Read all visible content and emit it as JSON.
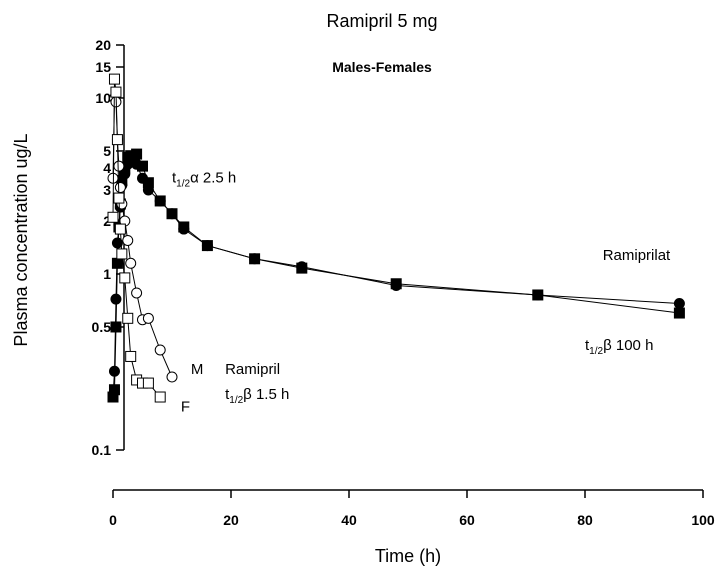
{
  "chart_data": {
    "type": "scatter",
    "title": "Ramipril 5 mg",
    "subtitle": "Males-Females",
    "xlabel": "Time (h)",
    "ylabel": "Plasma concentration ug/L",
    "xlim": [
      0,
      100
    ],
    "ylim": [
      0.1,
      20
    ],
    "yscale": "log",
    "grid": false,
    "x_ticks": [
      0,
      20,
      40,
      60,
      80,
      100
    ],
    "x_tick_labels": [
      "0",
      "20",
      "40",
      "60",
      "80",
      "100"
    ],
    "y_ticks": [
      0.1,
      0.5,
      1,
      2,
      3,
      4,
      5,
      10,
      15,
      20
    ],
    "y_tick_labels": [
      "0.1",
      "0.5",
      "1",
      "2",
      "3",
      "4",
      "5",
      "10",
      "15",
      "20"
    ],
    "series": [
      {
        "label": "Ramiprilat",
        "marker": "filled-circle",
        "color": "#000000",
        "x": [
          0,
          0.25,
          0.5,
          0.75,
          1,
          1.25,
          1.5,
          2,
          2.5,
          3,
          4,
          5,
          6,
          8,
          10,
          12,
          16,
          24,
          32,
          48,
          72,
          96
        ],
        "y": [
          0.2,
          0.28,
          0.72,
          1.5,
          1.9,
          2.4,
          3.2,
          3.7,
          4.2,
          4.4,
          4.2,
          3.5,
          3.0,
          2.6,
          2.2,
          1.8,
          1.45,
          1.22,
          1.1,
          0.86,
          0.76,
          0.68
        ]
      },
      {
        "label": "Ramiprilat",
        "marker": "filled-square",
        "color": "#000000",
        "x": [
          0,
          0.25,
          0.5,
          0.75,
          1,
          1.25,
          1.5,
          2,
          2.5,
          3,
          4,
          5,
          6,
          8,
          10,
          12,
          16,
          24,
          32,
          48,
          72,
          96
        ],
        "y": [
          0.2,
          0.22,
          0.5,
          1.15,
          1.85,
          2.5,
          3.4,
          4.0,
          4.6,
          4.7,
          4.8,
          4.1,
          3.3,
          2.6,
          2.2,
          1.85,
          1.45,
          1.22,
          1.08,
          0.88,
          0.76,
          0.6
        ]
      },
      {
        "label": "M",
        "marker": "open-circle",
        "color": "#000000",
        "x": [
          0,
          0.25,
          0.5,
          0.75,
          1,
          1.25,
          1.5,
          2,
          2.5,
          3,
          4,
          5,
          6,
          8,
          10
        ],
        "y": [
          3.5,
          10.0,
          9.5,
          5.8,
          4.1,
          3.1,
          2.5,
          2.0,
          1.55,
          1.15,
          0.78,
          0.55,
          0.56,
          0.37,
          0.26
        ]
      },
      {
        "label": "F",
        "marker": "open-square",
        "color": "#000000",
        "x": [
          0,
          0.25,
          0.5,
          0.75,
          1,
          1.25,
          1.5,
          2,
          2.5,
          3,
          4,
          5,
          6,
          8
        ],
        "y": [
          2.1,
          12.8,
          10.8,
          5.8,
          2.7,
          1.8,
          1.3,
          0.95,
          0.56,
          0.34,
          0.25,
          0.24,
          0.24,
          0.2
        ]
      }
    ],
    "annotations": [
      {
        "text": "t",
        "sub": "1/2",
        "greek": "α",
        "rest": " 2.5 h",
        "x": 10,
        "y": 3.3
      },
      {
        "text": "Ramiprilat",
        "x": 83,
        "y": 1.2
      },
      {
        "text": "t",
        "sub": "1/2",
        "greek": "β",
        "rest": " 100 h",
        "x": 80,
        "y": 0.37
      },
      {
        "text": "M",
        "x": 13.2,
        "y": 0.27
      },
      {
        "text": "Ramipril",
        "x": 19,
        "y": 0.27
      },
      {
        "text": "F",
        "x": 11.5,
        "y": 0.165
      },
      {
        "text": "t",
        "sub": "1/2",
        "greek": "β",
        "rest": " 1.5 h",
        "x": 19,
        "y": 0.195
      }
    ]
  }
}
